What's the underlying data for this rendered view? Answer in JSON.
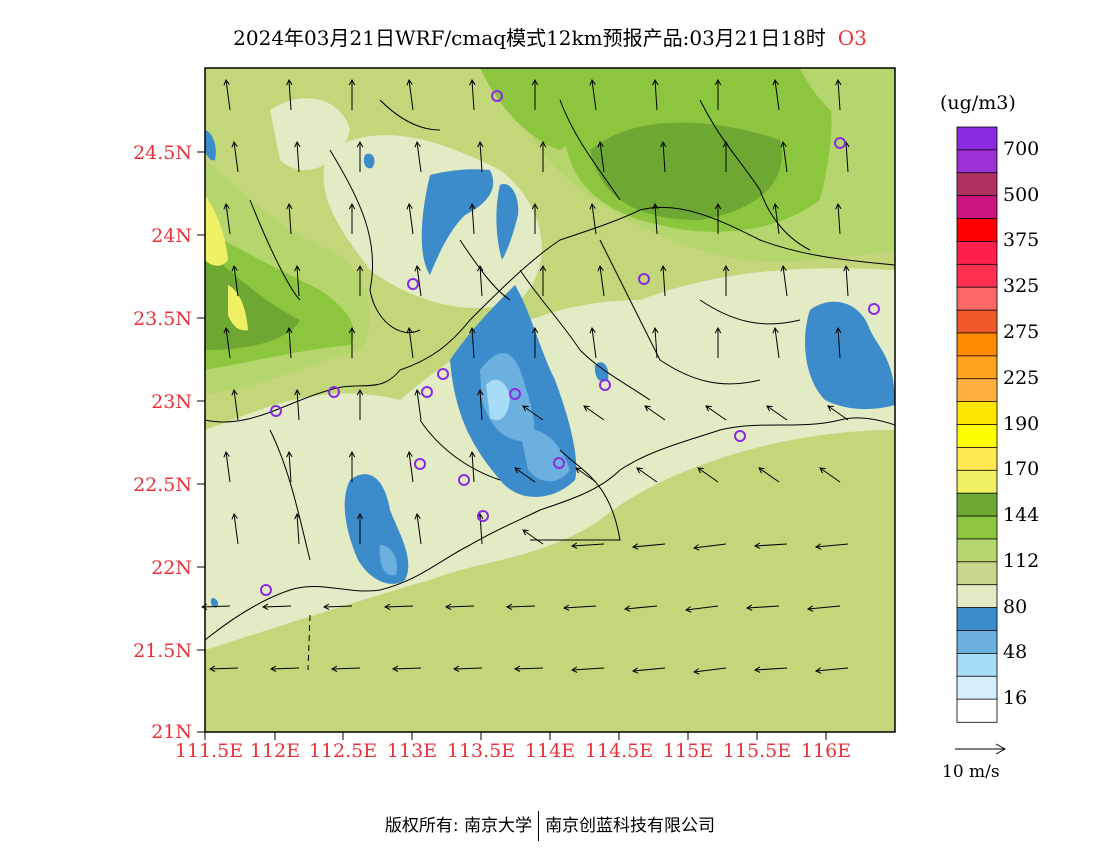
{
  "title": {
    "main": "2024年03月21日WRF/cmaq模式12km预报产品:03月21日18时",
    "species": "O3"
  },
  "axes": {
    "lat_labels": [
      "24.5N",
      "24N",
      "23.5N",
      "23N",
      "22.5N",
      "22N",
      "21.5N",
      "21N"
    ],
    "lon_labels": [
      "111.5E",
      "112E",
      "112.5E",
      "113E",
      "113.5E",
      "114E",
      "114.5E",
      "115E",
      "115.5E",
      "116E"
    ]
  },
  "legend": {
    "unit": "(ug/m3)",
    "bins": [
      {
        "color": "#8a2be2",
        "label": "700"
      },
      {
        "color": "#9b30d6",
        "label": ""
      },
      {
        "color": "#b03060",
        "label": "500"
      },
      {
        "color": "#cc1480",
        "label": ""
      },
      {
        "color": "#ff0000",
        "label": "375"
      },
      {
        "color": "#ff1f4e",
        "label": ""
      },
      {
        "color": "#ff3050",
        "label": "325"
      },
      {
        "color": "#ff6868",
        "label": ""
      },
      {
        "color": "#f05a28",
        "label": "275"
      },
      {
        "color": "#ff8c00",
        "label": ""
      },
      {
        "color": "#ffa21e",
        "label": "225"
      },
      {
        "color": "#ffb040",
        "label": ""
      },
      {
        "color": "#ffe600",
        "label": "190"
      },
      {
        "color": "#ffff00",
        "label": ""
      },
      {
        "color": "#ffe850",
        "label": "170"
      },
      {
        "color": "#f0f064",
        "label": ""
      },
      {
        "color": "#6ca832",
        "label": "144"
      },
      {
        "color": "#8cc63e",
        "label": ""
      },
      {
        "color": "#b5d66c",
        "label": "112"
      },
      {
        "color": "#c6d68a",
        "label": ""
      },
      {
        "color": "#e2ebc4",
        "label": "80"
      },
      {
        "color": "#3c8ccc",
        "label": ""
      },
      {
        "color": "#6cb0e0",
        "label": "48"
      },
      {
        "color": "#a6dcf8",
        "label": ""
      },
      {
        "color": "#d6eefc",
        "label": "16"
      },
      {
        "color": "#ffffff",
        "label": ""
      }
    ]
  },
  "wind_reference": {
    "label": "10 m/s"
  },
  "footer": {
    "left": "版权所有: 南京大学",
    "right": "南京创蓝科技有限公司"
  },
  "map_colors": {
    "base": "#c2d67a",
    "light": "#e2ebc4",
    "green1": "#b5d66c",
    "green2": "#8cc63e",
    "green3": "#6ca832",
    "yellow": "#f0f064",
    "blue1": "#3c8ccc",
    "blue2": "#6cb0e0",
    "blue3": "#a6dcf8"
  }
}
